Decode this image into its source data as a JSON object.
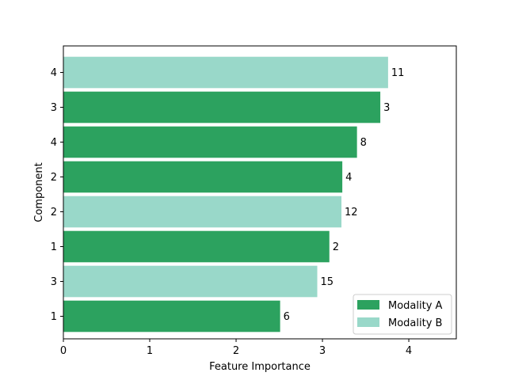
{
  "chart_data": {
    "type": "bar",
    "orientation": "horizontal",
    "xlabel": "Feature Importance",
    "ylabel": "Component",
    "xlim": [
      0,
      4.55
    ],
    "xticks": [
      0,
      1,
      2,
      3,
      4
    ],
    "bars": [
      {
        "tick": "1",
        "value": 2.51,
        "label": "6",
        "series": "Modality A"
      },
      {
        "tick": "3",
        "value": 2.94,
        "label": "15",
        "series": "Modality B"
      },
      {
        "tick": "1",
        "value": 3.08,
        "label": "2",
        "series": "Modality A"
      },
      {
        "tick": "2",
        "value": 3.22,
        "label": "12",
        "series": "Modality B"
      },
      {
        "tick": "2",
        "value": 3.23,
        "label": "4",
        "series": "Modality A"
      },
      {
        "tick": "4",
        "value": 3.4,
        "label": "8",
        "series": "Modality A"
      },
      {
        "tick": "3",
        "value": 3.67,
        "label": "3",
        "series": "Modality A"
      },
      {
        "tick": "4",
        "value": 3.76,
        "label": "11",
        "series": "Modality B"
      }
    ],
    "series": [
      {
        "name": "Modality A",
        "color": "#2ca25f"
      },
      {
        "name": "Modality B",
        "color": "#99d8c9"
      }
    ],
    "legend_position": "lower-right",
    "grid": false
  }
}
